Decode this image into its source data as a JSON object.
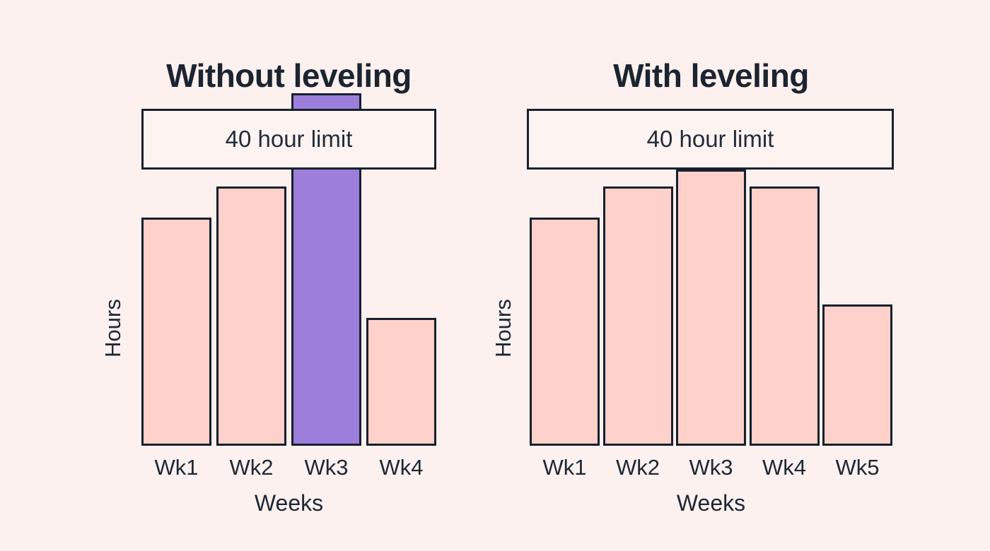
{
  "page": {
    "background_color": "#FDF1EF"
  },
  "colors": {
    "bar_pink": "#FFD1CB",
    "bar_purple": "#9C7FDB",
    "outline_dark": "#18202D",
    "text_dark": "#1E2734",
    "limit_box_fill": "#FDF4F2"
  },
  "chart_data": [
    {
      "type": "bar",
      "title": "Without leveling",
      "xlabel": "Weeks",
      "ylabel": "Hours",
      "categories": [
        "Wk1",
        "Wk2",
        "Wk3",
        "Wk4"
      ],
      "values": [
        33,
        37.5,
        51,
        18.5
      ],
      "unit": "hours",
      "ylim": [
        0,
        52
      ],
      "grid": false,
      "legend": "none",
      "limit_line": {
        "value": 40,
        "label": "40 hour limit"
      },
      "bar_color": "#FFD1CB",
      "highlight": {
        "index": 2,
        "color": "#9C7FDB",
        "meaning": "bar exceeding the 40 hour limit"
      }
    },
    {
      "type": "bar",
      "title": "With leveling",
      "xlabel": "Weeks",
      "ylabel": "Hours",
      "categories": [
        "Wk1",
        "Wk2",
        "Wk3",
        "Wk4",
        "Wk5"
      ],
      "values": [
        33,
        37.5,
        40,
        37.5,
        20.5
      ],
      "unit": "hours",
      "ylim": [
        0,
        52
      ],
      "grid": false,
      "legend": "none",
      "limit_line": {
        "value": 40,
        "label": "40 hour limit"
      },
      "bar_color": "#FFD1CB",
      "highlight": null
    }
  ]
}
